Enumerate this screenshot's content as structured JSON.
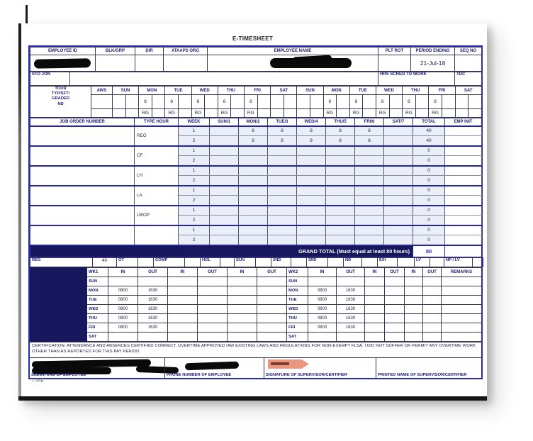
{
  "page": {
    "title": "E-TIMESHEET",
    "footer_label": "TIME"
  },
  "colors": {
    "border_navy": "#2a2ab2",
    "bar_navy": "#17175e",
    "header_text": "#1c1c78",
    "cell_light_blue": "#e9eef8",
    "grand_total_value_blue": "#2b2bd0",
    "sticker_salmon": "#e89780"
  },
  "header": {
    "labels": [
      "EMPLOYEE ID",
      "BLK/GRP",
      "DIR",
      "ATAAPS ORG",
      "EMPLOYEE NAME",
      "PLT ROT",
      "PERIOD ENDING",
      "SEQ NO"
    ],
    "period_ending": "21-Jul-18",
    "std_jon": "STD JON",
    "hrs_sched": "HRS SCHED TO WORK",
    "tdc": "TDC"
  },
  "tour": {
    "label_lines": [
      "TOUR",
      "TYP/SFT/",
      "GRADED",
      "ND"
    ],
    "aws": "AWS",
    "days": [
      "SUN",
      "MON",
      "TUE",
      "WED",
      "THU",
      "FRI",
      "SAT",
      "SUN",
      "MON",
      "TUE",
      "WED",
      "THU",
      "FRI",
      "SAT"
    ],
    "hours": [
      "",
      "8",
      "8",
      "8",
      "8",
      "8",
      "",
      "",
      "8",
      "8",
      "8",
      "8",
      "8",
      ""
    ],
    "codes": [
      "",
      "RG",
      "RG",
      "RG",
      "RG",
      "RG",
      "",
      "",
      "RG",
      "RG",
      "RG",
      "RG",
      "RG",
      ""
    ]
  },
  "grid": {
    "headers": [
      "JOB ORDER NUMBER",
      "TYPE HOUR",
      "WEEK",
      "SUN/1",
      "MON/2",
      "TUE/3",
      "WED/4",
      "THU/5",
      "FRI/6",
      "SAT/7",
      "TOTAL",
      "EMP INIT"
    ],
    "groups": [
      {
        "type": "REG",
        "weeks": [
          {
            "week": "1",
            "days": [
              "",
              "8",
              "8",
              "8",
              "8",
              "8",
              ""
            ],
            "total": "40"
          },
          {
            "week": "2",
            "days": [
              "",
              "8",
              "8",
              "8",
              "8",
              "8",
              ""
            ],
            "total": "40"
          }
        ]
      },
      {
        "type": "CF",
        "weeks": [
          {
            "week": "1",
            "days": [
              "",
              "",
              "",
              "",
              "",
              "",
              ""
            ],
            "total": "0"
          },
          {
            "week": "2",
            "days": [
              "",
              "",
              "",
              "",
              "",
              "",
              ""
            ],
            "total": "0"
          }
        ]
      },
      {
        "type": "LH",
        "weeks": [
          {
            "week": "1",
            "days": [
              "",
              "",
              "",
              "",
              "",
              "",
              ""
            ],
            "total": "0"
          },
          {
            "week": "2",
            "days": [
              "",
              "",
              "",
              "",
              "",
              "",
              ""
            ],
            "total": "0"
          }
        ]
      },
      {
        "type": "LA",
        "weeks": [
          {
            "week": "1",
            "days": [
              "",
              "",
              "",
              "",
              "",
              "",
              ""
            ],
            "total": "0"
          },
          {
            "week": "2",
            "days": [
              "",
              "",
              "",
              "",
              "",
              "",
              ""
            ],
            "total": "0"
          }
        ]
      },
      {
        "type": "LWOP",
        "weeks": [
          {
            "week": "1",
            "days": [
              "",
              "",
              "",
              "",
              "",
              "",
              ""
            ],
            "total": "0"
          },
          {
            "week": "2",
            "days": [
              "",
              "",
              "",
              "",
              "",
              "",
              ""
            ],
            "total": "0"
          }
        ]
      },
      {
        "type": "",
        "weeks": [
          {
            "week": "1",
            "days": [
              "",
              "",
              "",
              "",
              "",
              "",
              ""
            ],
            "total": "0"
          },
          {
            "week": "2",
            "days": [
              "",
              "",
              "",
              "",
              "",
              "",
              ""
            ],
            "total": "0"
          }
        ]
      }
    ],
    "grand_total_label": "GRAND TOTAL (Must equal at least 80 hours)",
    "grand_total": "80"
  },
  "summary": {
    "categories": [
      {
        "label": "REG",
        "value": "40"
      },
      {
        "label": "OT",
        "value": ""
      },
      {
        "label": "COMP",
        "value": ""
      },
      {
        "label": "HOL",
        "value": ""
      },
      {
        "label": "SUN",
        "value": ""
      },
      {
        "label": "2ND",
        "value": ""
      },
      {
        "label": "3RD",
        "value": ""
      },
      {
        "label": "ND",
        "value": ""
      },
      {
        "label": "E/H",
        "value": ""
      },
      {
        "label": "LV",
        "value": ""
      },
      {
        "label": "NP / LV",
        "value": ""
      }
    ]
  },
  "inout": {
    "wk1_label": "WK1",
    "wk2_label": "WK2",
    "in_label": "IN",
    "out_label": "OUT",
    "remarks_label": "REMARKS",
    "rows": [
      {
        "day": "SUN",
        "wk1": [
          "",
          "",
          "",
          "",
          "",
          ""
        ],
        "wk2": [
          "",
          "",
          "",
          "",
          "",
          ""
        ],
        "remarks": ""
      },
      {
        "day": "MON",
        "wk1": [
          "0800",
          "1630",
          "",
          "",
          "",
          ""
        ],
        "wk2": [
          "0800",
          "1630",
          "",
          "",
          "",
          ""
        ],
        "remarks": ""
      },
      {
        "day": "TUE",
        "wk1": [
          "0800",
          "1630",
          "",
          "",
          "",
          ""
        ],
        "wk2": [
          "0800",
          "1630",
          "",
          "",
          "",
          ""
        ],
        "remarks": ""
      },
      {
        "day": "WED",
        "wk1": [
          "0800",
          "1630",
          "",
          "",
          "",
          ""
        ],
        "wk2": [
          "0800",
          "1630",
          "",
          "",
          "",
          ""
        ],
        "remarks": ""
      },
      {
        "day": "THU",
        "wk1": [
          "0800",
          "1630",
          "",
          "",
          "",
          ""
        ],
        "wk2": [
          "0800",
          "1630",
          "",
          "",
          "",
          ""
        ],
        "remarks": ""
      },
      {
        "day": "FRI",
        "wk1": [
          "0800",
          "1630",
          "",
          "",
          "",
          ""
        ],
        "wk2": [
          "0800",
          "1630",
          "",
          "",
          "",
          ""
        ],
        "remarks": ""
      },
      {
        "day": "SAT",
        "wk1": [
          "",
          "",
          "",
          "",
          "",
          ""
        ],
        "wk2": [
          "",
          "",
          "",
          "",
          "",
          ""
        ],
        "remarks": ""
      }
    ]
  },
  "certification": {
    "text": "CERTIFICATION:  ATTENDANCE AND ABSENCES CERTIFIED CORRECT. OVERTIME APPROVED IAW EXISTING LAWS AND REGULATIONS FOR NON-EXEMPT FLSA. I DID NOT SUFFER OR PERMIT ANY OVERTIME WORK OTHER THAN AS REPORTED FOR THIS PAY PERIOD."
  },
  "signatures": {
    "labels": [
      "SIGNATURE OF EMPLOYEE",
      "PHONE NUMBER OF EMPLOYEE",
      "SIGNATURE OF SUPERVISOR/CERTIFIER",
      "PRINTED NAME OF SUPERVISOR/CERTIFIER"
    ]
  }
}
